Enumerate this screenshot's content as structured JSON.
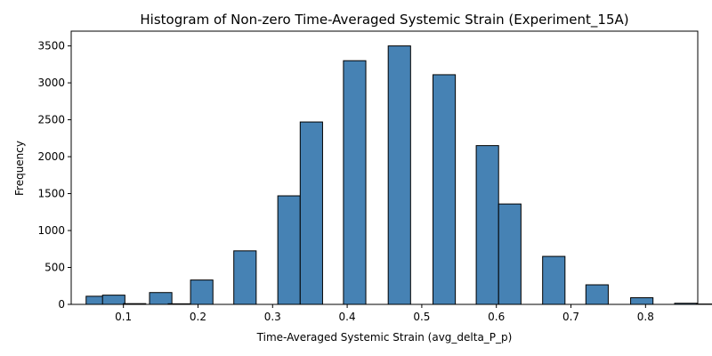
{
  "chart_data": {
    "type": "bar",
    "title": "Histogram of Non-zero Time-Averaged Systemic Strain (Experiment_15A)",
    "xlabel": "Time-Averaged Systemic Strain (avg_delta_P_p)",
    "ylabel": "Frequency",
    "xlim": [
      0.03,
      0.87
    ],
    "ylim": [
      0,
      3700
    ],
    "xticks": [
      0.1,
      0.2,
      0.3,
      0.4,
      0.5,
      0.6,
      0.7,
      0.8
    ],
    "yticks": [
      0,
      500,
      1000,
      1500,
      2000,
      2500,
      3000,
      3500
    ],
    "bin_width": 0.03,
    "bins": [
      {
        "left": 0.05,
        "count": 110
      },
      {
        "left": 0.072,
        "count": 125
      },
      {
        "left": 0.1,
        "count": 10
      },
      {
        "left": 0.135,
        "count": 160
      },
      {
        "left": 0.16,
        "count": 8
      },
      {
        "left": 0.19,
        "count": 330
      },
      {
        "left": 0.248,
        "count": 725
      },
      {
        "left": 0.307,
        "count": 1470
      },
      {
        "left": 0.337,
        "count": 2470
      },
      {
        "left": 0.395,
        "count": 3300
      },
      {
        "left": 0.455,
        "count": 3500
      },
      {
        "left": 0.515,
        "count": 3110
      },
      {
        "left": 0.573,
        "count": 2150
      },
      {
        "left": 0.603,
        "count": 1360
      },
      {
        "left": 0.662,
        "count": 650
      },
      {
        "left": 0.72,
        "count": 265
      },
      {
        "left": 0.78,
        "count": 90
      },
      {
        "left": 0.839,
        "count": 15
      },
      {
        "left": 0.868,
        "count": 5
      }
    ],
    "grid": false,
    "legend": "none",
    "colors": {
      "bar": "#4682b4",
      "edge": "#000000"
    }
  }
}
